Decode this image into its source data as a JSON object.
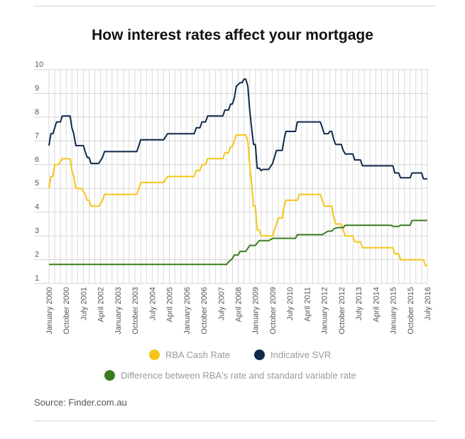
{
  "chart_data": {
    "type": "line",
    "title": "How interest rates affect your mortgage",
    "source": "Source: Finder.com.au",
    "ylim": [
      1,
      10
    ],
    "yticks": [
      1,
      2,
      3,
      4,
      5,
      6,
      7,
      8,
      9,
      10
    ],
    "xlim": [
      2000.0,
      2016.5
    ],
    "x_ticks": [
      {
        "label": "January 2000",
        "x": 2000.0
      },
      {
        "label": "October 2000",
        "x": 2000.75
      },
      {
        "label": "July 2001",
        "x": 2001.5
      },
      {
        "label": "April 2002",
        "x": 2002.25
      },
      {
        "label": "January 2003",
        "x": 2003.0
      },
      {
        "label": "October 2003",
        "x": 2003.75
      },
      {
        "label": "July 2004",
        "x": 2004.5
      },
      {
        "label": "April 2005",
        "x": 2005.25
      },
      {
        "label": "January 2006",
        "x": 2006.0
      },
      {
        "label": "October 2006",
        "x": 2006.75
      },
      {
        "label": "July 2007",
        "x": 2007.5
      },
      {
        "label": "April 2008",
        "x": 2008.25
      },
      {
        "label": "January 2009",
        "x": 2009.0
      },
      {
        "label": "October 2009",
        "x": 2009.75
      },
      {
        "label": "July 2010",
        "x": 2010.5
      },
      {
        "label": "April 2011",
        "x": 2011.25
      },
      {
        "label": "January 2012",
        "x": 2012.0
      },
      {
        "label": "October 2012",
        "x": 2012.75
      },
      {
        "label": "July 2013",
        "x": 2013.5
      },
      {
        "label": "April 2014",
        "x": 2014.25
      },
      {
        "label": "January 2015",
        "x": 2015.0
      },
      {
        "label": "October 2015",
        "x": 2015.75
      },
      {
        "label": "July 2016",
        "x": 2016.5
      }
    ],
    "grid": true,
    "legend_position": "bottom",
    "series": [
      {
        "name": "RBA Cash Rate",
        "color": "#f5c518",
        "points": [
          [
            2000.0,
            5.0
          ],
          [
            2000.08,
            5.5
          ],
          [
            2000.17,
            5.5
          ],
          [
            2000.25,
            6.0
          ],
          [
            2000.42,
            6.0
          ],
          [
            2000.58,
            6.25
          ],
          [
            2000.92,
            6.25
          ],
          [
            2001.0,
            5.75
          ],
          [
            2001.08,
            5.5
          ],
          [
            2001.17,
            5.0
          ],
          [
            2001.42,
            5.0
          ],
          [
            2001.58,
            4.75
          ],
          [
            2001.67,
            4.5
          ],
          [
            2001.75,
            4.5
          ],
          [
            2001.83,
            4.25
          ],
          [
            2002.17,
            4.25
          ],
          [
            2002.33,
            4.5
          ],
          [
            2002.42,
            4.75
          ],
          [
            2003.83,
            4.75
          ],
          [
            2003.92,
            5.0
          ],
          [
            2004.0,
            5.25
          ],
          [
            2005.0,
            5.25
          ],
          [
            2005.17,
            5.5
          ],
          [
            2006.33,
            5.5
          ],
          [
            2006.42,
            5.75
          ],
          [
            2006.58,
            5.75
          ],
          [
            2006.67,
            6.0
          ],
          [
            2006.83,
            6.0
          ],
          [
            2006.92,
            6.25
          ],
          [
            2007.58,
            6.25
          ],
          [
            2007.67,
            6.5
          ],
          [
            2007.83,
            6.5
          ],
          [
            2007.92,
            6.75
          ],
          [
            2008.0,
            6.75
          ],
          [
            2008.08,
            7.0
          ],
          [
            2008.17,
            7.25
          ],
          [
            2008.58,
            7.25
          ],
          [
            2008.67,
            7.0
          ],
          [
            2008.75,
            6.0
          ],
          [
            2008.83,
            5.25
          ],
          [
            2008.92,
            4.25
          ],
          [
            2009.0,
            4.25
          ],
          [
            2009.08,
            3.25
          ],
          [
            2009.17,
            3.25
          ],
          [
            2009.25,
            3.0
          ],
          [
            2009.75,
            3.0
          ],
          [
            2009.83,
            3.25
          ],
          [
            2009.92,
            3.5
          ],
          [
            2010.0,
            3.75
          ],
          [
            2010.17,
            3.75
          ],
          [
            2010.25,
            4.25
          ],
          [
            2010.33,
            4.5
          ],
          [
            2010.83,
            4.5
          ],
          [
            2010.92,
            4.75
          ],
          [
            2011.83,
            4.75
          ],
          [
            2011.92,
            4.5
          ],
          [
            2012.0,
            4.25
          ],
          [
            2012.33,
            4.25
          ],
          [
            2012.42,
            3.75
          ],
          [
            2012.5,
            3.5
          ],
          [
            2012.75,
            3.5
          ],
          [
            2012.83,
            3.25
          ],
          [
            2012.92,
            3.0
          ],
          [
            2013.25,
            3.0
          ],
          [
            2013.33,
            2.75
          ],
          [
            2013.58,
            2.75
          ],
          [
            2013.67,
            2.5
          ],
          [
            2015.0,
            2.5
          ],
          [
            2015.08,
            2.25
          ],
          [
            2015.25,
            2.25
          ],
          [
            2015.33,
            2.0
          ],
          [
            2016.33,
            2.0
          ],
          [
            2016.42,
            1.75
          ],
          [
            2016.5,
            1.75
          ]
        ]
      },
      {
        "name": "Indicative SVR",
        "color": "#0f2a4a",
        "points": [
          [
            2000.0,
            6.8
          ],
          [
            2000.08,
            7.3
          ],
          [
            2000.17,
            7.3
          ],
          [
            2000.25,
            7.55
          ],
          [
            2000.33,
            7.8
          ],
          [
            2000.5,
            7.8
          ],
          [
            2000.58,
            8.05
          ],
          [
            2000.92,
            8.05
          ],
          [
            2001.0,
            7.55
          ],
          [
            2001.08,
            7.3
          ],
          [
            2001.17,
            6.8
          ],
          [
            2001.5,
            6.8
          ],
          [
            2001.58,
            6.55
          ],
          [
            2001.67,
            6.3
          ],
          [
            2001.75,
            6.3
          ],
          [
            2001.83,
            6.05
          ],
          [
            2002.17,
            6.05
          ],
          [
            2002.33,
            6.3
          ],
          [
            2002.42,
            6.55
          ],
          [
            2003.83,
            6.55
          ],
          [
            2003.92,
            6.8
          ],
          [
            2004.0,
            7.05
          ],
          [
            2005.0,
            7.05
          ],
          [
            2005.17,
            7.3
          ],
          [
            2006.33,
            7.3
          ],
          [
            2006.42,
            7.55
          ],
          [
            2006.58,
            7.55
          ],
          [
            2006.67,
            7.8
          ],
          [
            2006.83,
            7.8
          ],
          [
            2006.92,
            8.05
          ],
          [
            2007.58,
            8.05
          ],
          [
            2007.67,
            8.3
          ],
          [
            2007.83,
            8.3
          ],
          [
            2007.92,
            8.55
          ],
          [
            2008.0,
            8.55
          ],
          [
            2008.08,
            8.8
          ],
          [
            2008.17,
            9.3
          ],
          [
            2008.33,
            9.45
          ],
          [
            2008.42,
            9.45
          ],
          [
            2008.5,
            9.6
          ],
          [
            2008.58,
            9.6
          ],
          [
            2008.67,
            9.3
          ],
          [
            2008.75,
            8.3
          ],
          [
            2008.83,
            7.6
          ],
          [
            2008.92,
            6.85
          ],
          [
            2009.0,
            6.85
          ],
          [
            2009.08,
            5.85
          ],
          [
            2009.17,
            5.85
          ],
          [
            2009.25,
            5.75
          ],
          [
            2009.33,
            5.8
          ],
          [
            2009.42,
            5.8
          ],
          [
            2009.58,
            5.8
          ],
          [
            2009.75,
            6.05
          ],
          [
            2009.83,
            6.3
          ],
          [
            2009.92,
            6.6
          ],
          [
            2010.17,
            6.6
          ],
          [
            2010.25,
            7.05
          ],
          [
            2010.33,
            7.4
          ],
          [
            2010.75,
            7.4
          ],
          [
            2010.83,
            7.8
          ],
          [
            2011.83,
            7.8
          ],
          [
            2011.92,
            7.55
          ],
          [
            2012.0,
            7.3
          ],
          [
            2012.17,
            7.3
          ],
          [
            2012.25,
            7.4
          ],
          [
            2012.33,
            7.4
          ],
          [
            2012.42,
            7.05
          ],
          [
            2012.5,
            6.85
          ],
          [
            2012.75,
            6.85
          ],
          [
            2012.83,
            6.6
          ],
          [
            2012.92,
            6.45
          ],
          [
            2013.25,
            6.45
          ],
          [
            2013.33,
            6.2
          ],
          [
            2013.58,
            6.2
          ],
          [
            2013.67,
            5.95
          ],
          [
            2015.0,
            5.95
          ],
          [
            2015.08,
            5.65
          ],
          [
            2015.25,
            5.65
          ],
          [
            2015.33,
            5.45
          ],
          [
            2015.75,
            5.45
          ],
          [
            2015.83,
            5.65
          ],
          [
            2016.25,
            5.65
          ],
          [
            2016.33,
            5.4
          ],
          [
            2016.5,
            5.4
          ]
        ]
      },
      {
        "name": "Difference between RBA's rate and standard variable rate",
        "color": "#3a7d1f",
        "points": [
          [
            2000.0,
            1.8
          ],
          [
            2007.75,
            1.8
          ],
          [
            2007.83,
            1.9
          ],
          [
            2008.0,
            2.05
          ],
          [
            2008.08,
            2.2
          ],
          [
            2008.25,
            2.2
          ],
          [
            2008.33,
            2.35
          ],
          [
            2008.58,
            2.35
          ],
          [
            2008.75,
            2.6
          ],
          [
            2009.0,
            2.6
          ],
          [
            2009.08,
            2.7
          ],
          [
            2009.17,
            2.8
          ],
          [
            2009.58,
            2.8
          ],
          [
            2009.75,
            2.9
          ],
          [
            2010.75,
            2.9
          ],
          [
            2010.83,
            3.05
          ],
          [
            2011.92,
            3.05
          ],
          [
            2012.0,
            3.1
          ],
          [
            2012.17,
            3.2
          ],
          [
            2012.33,
            3.2
          ],
          [
            2012.42,
            3.3
          ],
          [
            2012.58,
            3.35
          ],
          [
            2012.83,
            3.35
          ],
          [
            2012.92,
            3.45
          ],
          [
            2014.92,
            3.45
          ],
          [
            2015.0,
            3.4
          ],
          [
            2015.25,
            3.4
          ],
          [
            2015.33,
            3.45
          ],
          [
            2015.75,
            3.45
          ],
          [
            2015.83,
            3.65
          ],
          [
            2016.5,
            3.65
          ]
        ]
      }
    ]
  }
}
